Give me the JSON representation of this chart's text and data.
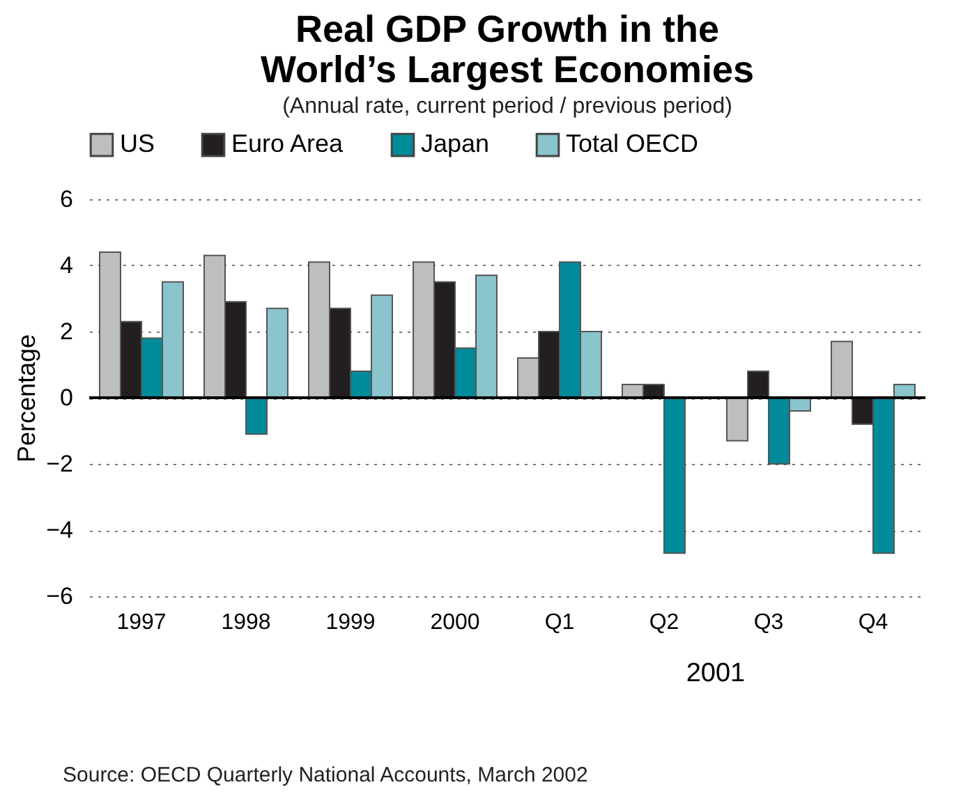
{
  "chart_data": {
    "type": "bar",
    "title": "Real GDP Growth in the World’s Largest Economies",
    "subtitle": "(Annual rate, current period / previous period)",
    "ylabel": "Percentage",
    "categories": [
      "1997",
      "1998",
      "1999",
      "2000",
      "Q1",
      "Q2",
      "Q3",
      "Q4"
    ],
    "series": [
      {
        "name": "US",
        "color": "#bcbec0",
        "values": [
          4.4,
          4.3,
          4.1,
          4.1,
          1.2,
          0.4,
          -1.3,
          1.7
        ]
      },
      {
        "name": "Euro Area",
        "color": "#231f20",
        "values": [
          2.3,
          2.9,
          2.7,
          3.5,
          2.0,
          0.4,
          0.8,
          -0.8
        ]
      },
      {
        "name": "Japan",
        "color": "#008b9a",
        "values": [
          1.8,
          -1.1,
          0.8,
          1.5,
          4.1,
          -4.7,
          -2.0,
          -4.7
        ]
      },
      {
        "name": "Total OECD",
        "color": "#8ac4cc",
        "values": [
          3.5,
          2.7,
          3.1,
          3.7,
          2.0,
          null,
          -0.4,
          0.4
        ]
      }
    ],
    "ylim": [
      -6,
      6
    ],
    "yticks": [
      -6,
      -4,
      -2,
      0,
      2,
      4,
      6
    ],
    "grid": "y",
    "legend": "top",
    "ref_lines": [
      {
        "axis": "y",
        "value": 0,
        "color": "#000000"
      }
    ],
    "annotations": [
      "2001",
      "Source: OECD Quarterly National Accounts, March 2002"
    ]
  }
}
